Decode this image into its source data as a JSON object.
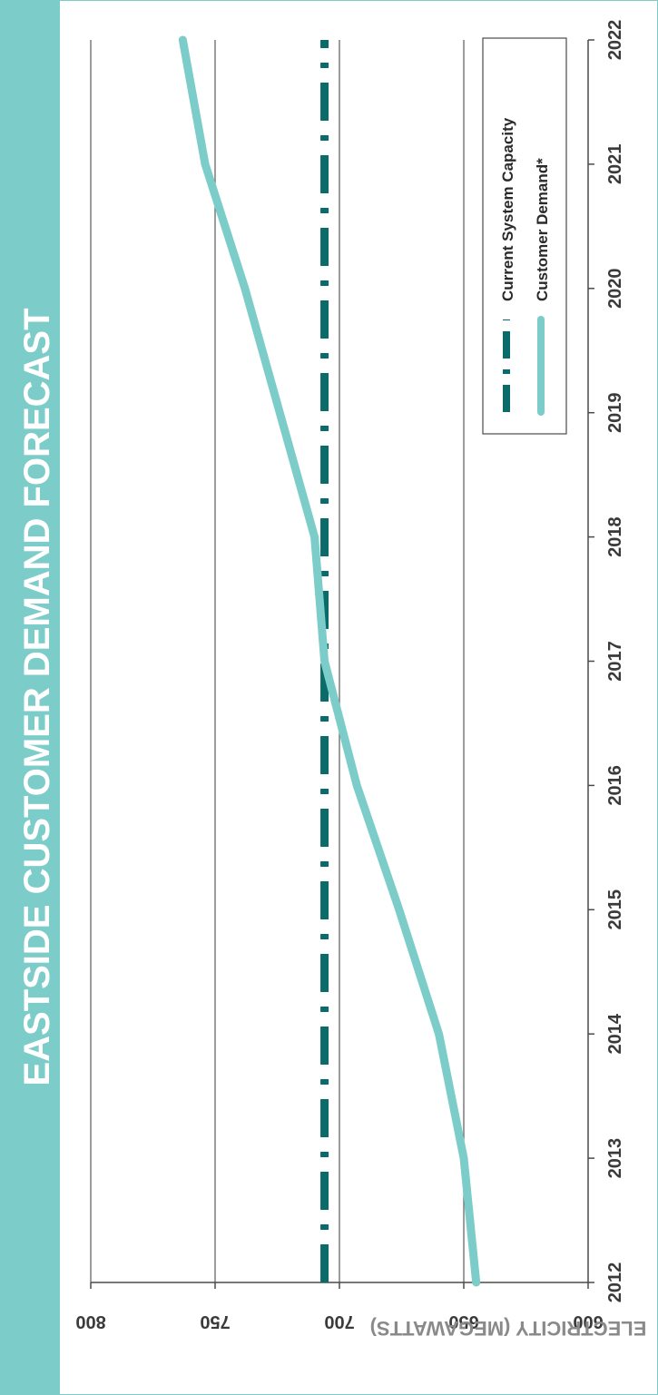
{
  "colors": {
    "banner": "#7ccdc9",
    "capacity_line": "#0b6b6b",
    "demand_line": "#7ccdc9",
    "grid": "#5a5a5a"
  },
  "chart_data": {
    "type": "line",
    "orientation": "rotated-90-clockwise",
    "title": "EASTSIDE CUSTOMER DEMAND FORECAST",
    "xlabel": "",
    "ylabel": "ELECTRICITY (MEGAWATTS)",
    "x": [
      "2012",
      "2013",
      "2014",
      "2015",
      "2016",
      "2017",
      "2018",
      "2019",
      "2020",
      "2021",
      "2022"
    ],
    "xlim": [
      2012,
      2022
    ],
    "ylim": [
      600,
      800
    ],
    "yticks": [
      "600",
      "650",
      "700",
      "750",
      "800"
    ],
    "grid": true,
    "legend_position": "top-right",
    "series": [
      {
        "name": "Current System Capacity",
        "style": "dash-dot",
        "values": [
          706,
          706,
          706,
          706,
          706,
          706,
          706,
          706,
          706,
          706,
          706
        ]
      },
      {
        "name": "Customer Demand*",
        "style": "solid",
        "values": [
          645,
          650,
          660,
          676,
          693,
          706,
          710,
          724,
          738,
          754,
          763
        ]
      }
    ]
  }
}
